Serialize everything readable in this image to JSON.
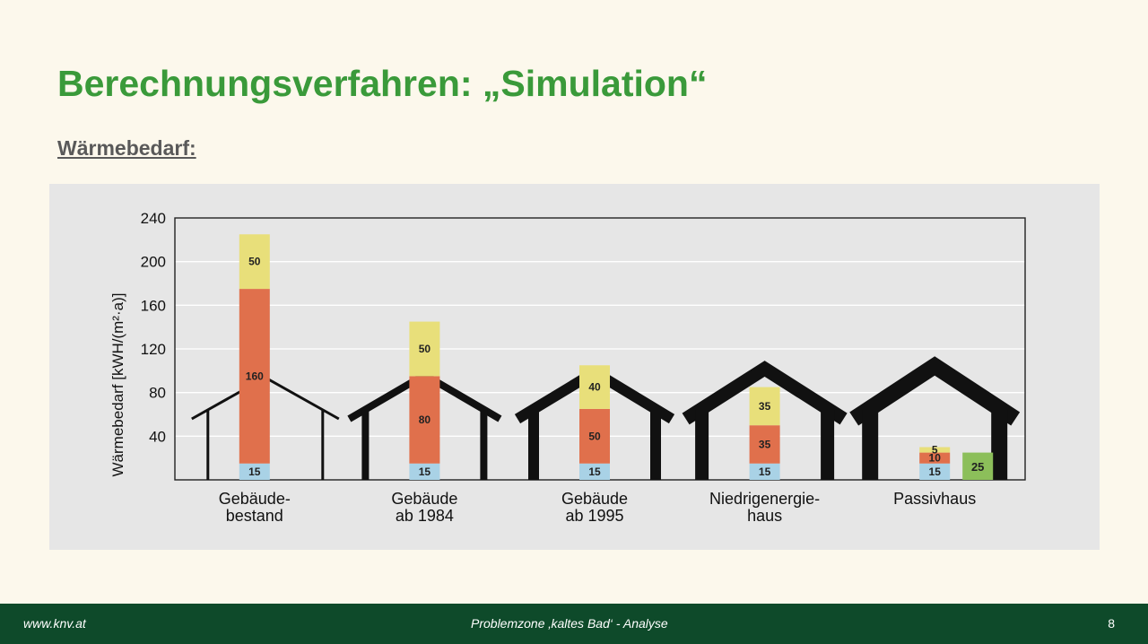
{
  "slide": {
    "title": "Berechnungsverfahren: „Simulation“",
    "subtitle": "Wärmebedarf:"
  },
  "footer": {
    "url": "www.knv.at",
    "center_text": "Problemzone ‚kaltes Bad‘ - Analyse",
    "page_number": "8"
  },
  "colors": {
    "title": "#3a9a3a",
    "footer_bg": "#0e4a2a",
    "chart_bg": "#e6e6e6",
    "segment_blue": "#a9d2e6",
    "segment_orange": "#e0704c",
    "segment_yellow": "#e8df7a",
    "segment_green": "#8cbf5a",
    "house_outline": "#111111"
  },
  "chart_data": {
    "type": "bar",
    "stacked": true,
    "ylabel": "Wärmebedarf [kWH/(m²·a)]",
    "ylim": [
      0,
      240
    ],
    "yticks": [
      40,
      80,
      120,
      160,
      200,
      240
    ],
    "grid": true,
    "categories": [
      {
        "line1": "Gebäude-",
        "line2": "bestand"
      },
      {
        "line1": "Gebäude",
        "line2": "ab 1984"
      },
      {
        "line1": "Gebäude",
        "line2": "ab 1995"
      },
      {
        "line1": "Niedrigenergie-",
        "line2": "haus"
      },
      {
        "line1": "Passivhaus",
        "line2": ""
      }
    ],
    "series": [
      {
        "color": "#a9d2e6",
        "values": [
          15,
          15,
          15,
          15,
          15
        ]
      },
      {
        "color": "#e0704c",
        "values": [
          160,
          80,
          50,
          35,
          10
        ]
      },
      {
        "color": "#e8df7a",
        "values": [
          50,
          50,
          40,
          35,
          5
        ]
      }
    ],
    "extra_bars": [
      {
        "category_index": 4,
        "value": 25,
        "color": "#8cbf5a"
      }
    ]
  }
}
